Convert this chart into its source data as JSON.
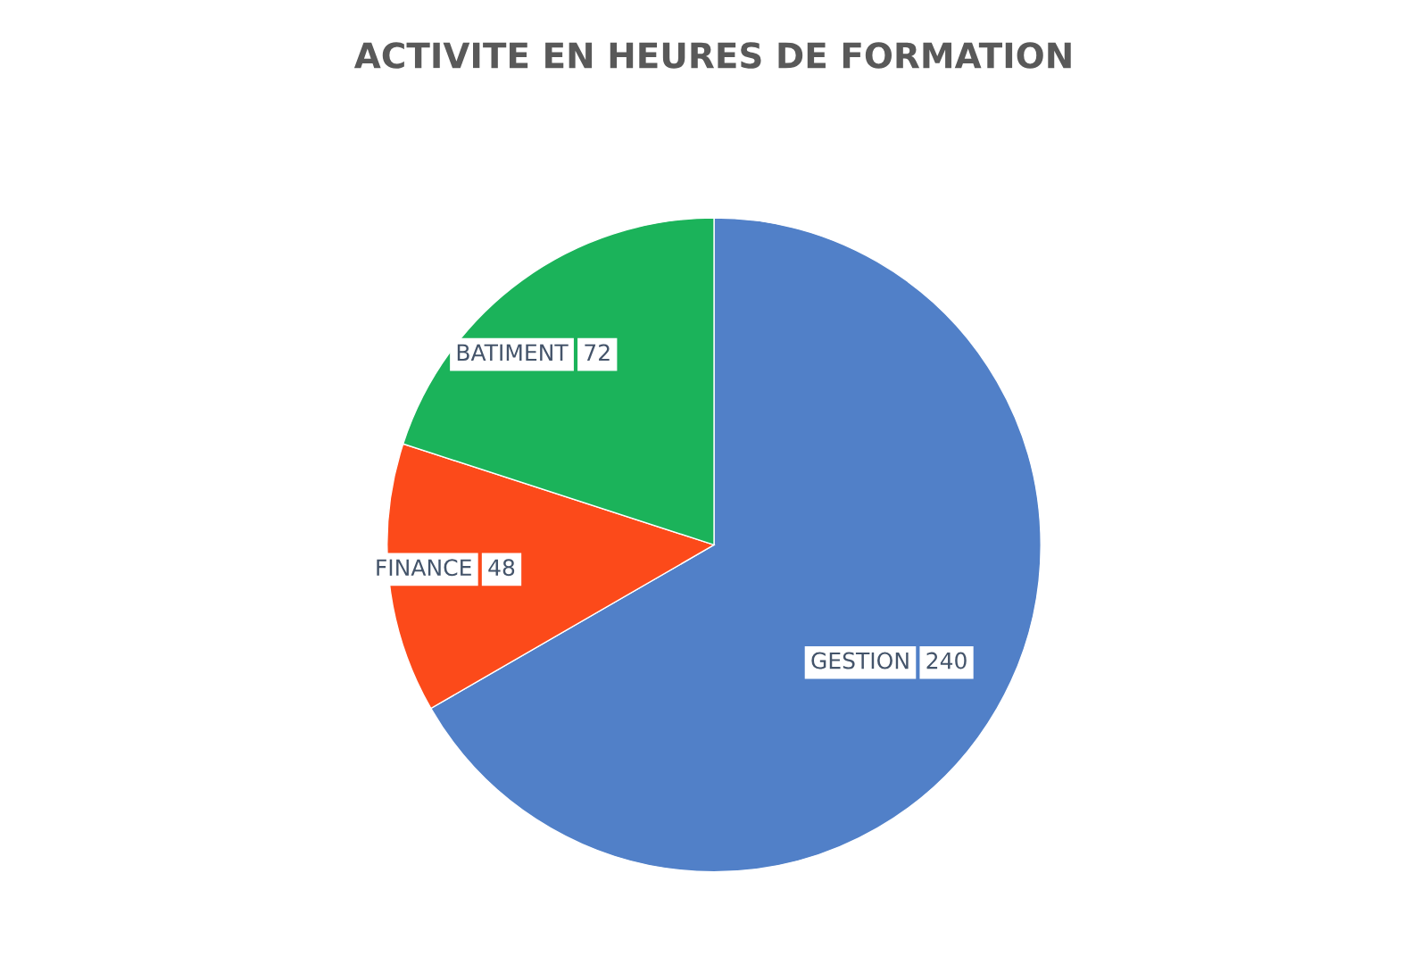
{
  "chart_data": {
    "type": "pie",
    "title": "ACTIVITE EN HEURES DE FORMATION",
    "categories": [
      "GESTION",
      "FINANCE",
      "BATIMENT"
    ],
    "values": [
      240,
      48,
      72
    ],
    "colors": [
      "#5180c8",
      "#fc4a1a",
      "#1bb35a"
    ],
    "data_labels": true,
    "legend": false
  }
}
